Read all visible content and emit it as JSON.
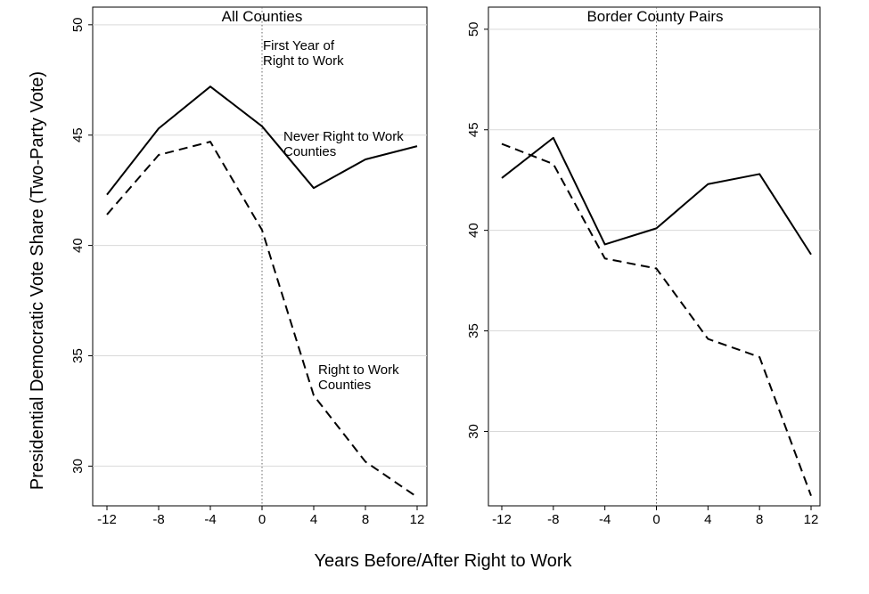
{
  "figure": {
    "xlabel": "Years Before/After Right to Work",
    "ylabel": "Presidential Democratic Vote Share (Two-Party Vote)"
  },
  "chart_data": [
    {
      "type": "line",
      "title": "All Counties",
      "x": [
        -12,
        -8,
        -4,
        0,
        4,
        8,
        12
      ],
      "xticks": [
        "-12",
        "-8",
        "-4",
        "0",
        "4",
        "8",
        "12"
      ],
      "yticks": [
        "30",
        "35",
        "40",
        "45",
        "50"
      ],
      "ylim": [
        28.2,
        50.8
      ],
      "grid": true,
      "reference_line_x": 0,
      "series": [
        {
          "style": "solid",
          "values": [
            42.3,
            45.3,
            47.2,
            45.4,
            42.6,
            43.9,
            44.5
          ]
        },
        {
          "style": "dashed",
          "values": [
            41.4,
            44.1,
            44.7,
            40.7,
            33.2,
            30.2,
            28.6
          ]
        }
      ],
      "annotations": [
        {
          "lines": [
            "First Year of",
            "Right to Work"
          ]
        },
        {
          "lines": [
            "Never Right to Work",
            "Counties"
          ]
        },
        {
          "lines": [
            "Right to Work",
            "Counties"
          ]
        }
      ]
    },
    {
      "type": "line",
      "title": "Border County Pairs",
      "x": [
        -12,
        -8,
        -4,
        0,
        4,
        8,
        12
      ],
      "xticks": [
        "-12",
        "-8",
        "-4",
        "0",
        "4",
        "8",
        "12"
      ],
      "yticks": [
        "30",
        "35",
        "40",
        "45",
        "50"
      ],
      "ylim": [
        26.3,
        51.1
      ],
      "grid": true,
      "reference_line_x": 0,
      "series": [
        {
          "style": "solid",
          "values": [
            42.6,
            44.6,
            39.3,
            40.1,
            42.3,
            42.8,
            38.8
          ]
        },
        {
          "style": "dashed",
          "values": [
            44.3,
            43.3,
            38.6,
            38.1,
            34.6,
            33.7,
            26.8
          ]
        }
      ]
    }
  ]
}
